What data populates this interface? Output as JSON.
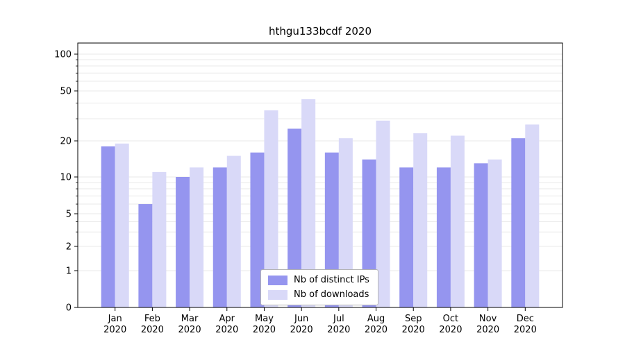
{
  "chart_data": {
    "type": "bar",
    "title": "hthgu133bcdf 2020",
    "categories": [
      "Jan",
      "Feb",
      "Mar",
      "Apr",
      "May",
      "Jun",
      "Jul",
      "Aug",
      "Sep",
      "Oct",
      "Nov",
      "Dec"
    ],
    "x_tick_second_line": "2020",
    "y_ticks": [
      0,
      1,
      2,
      5,
      10,
      20,
      50,
      100
    ],
    "y_scale": "symlog",
    "ylim": [
      0,
      140
    ],
    "grid": "horizontal light-gray minor gridlines",
    "legend": {
      "position": "bottom-center-inside"
    },
    "series": [
      {
        "name": "Nb of distinct IPs",
        "color": "#9595ef",
        "values": [
          18,
          6,
          10,
          12,
          16,
          25,
          16,
          14,
          12,
          12,
          13,
          21
        ]
      },
      {
        "name": "Nb of downloads",
        "color": "#d9d9f8",
        "values": [
          19,
          11,
          12,
          15,
          35,
          43,
          21,
          29,
          23,
          22,
          14,
          27
        ]
      }
    ]
  }
}
